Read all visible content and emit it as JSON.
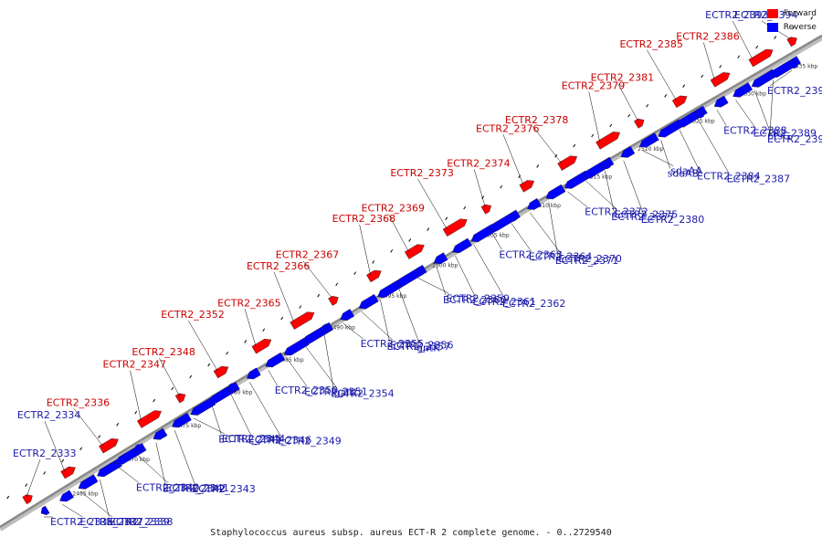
{
  "colors": {
    "forward": "#ff0000",
    "reverse": "#0000ff",
    "backbone": "#8a8a8a",
    "leader": "#000000"
  },
  "legend": [
    {
      "label": "Forward",
      "strand": "forward"
    },
    {
      "label": "Reverse",
      "strand": "reverse"
    }
  ],
  "caption": "Staphylococcus aureus subsp. aureus ECT-R 2 complete genome. - 0..2729540",
  "ticks": [
    "2465 kbp",
    "2470 kbp",
    "2475 kbp",
    "2480 kbp",
    "2485 kbp",
    "2490 kbp",
    "2495 kbp",
    "2500 kbp",
    "2505 kbp",
    "2510 kbp",
    "2515 kbp",
    "2520 kbp",
    "2525 kbp",
    "2530 kbp",
    "2535 kbp"
  ],
  "forward_genes": [
    "ECTR2_2333",
    "ECTR2_2334",
    "ECTR2_2336",
    "ECTR2_2347",
    "ECTR2_2348",
    "ECTR2_2352",
    "ECTR2_2365",
    "ECTR2_2366",
    "ECTR2_2367",
    "ECTR2_2368",
    "ECTR2_2369",
    "ECTR2_2373",
    "ECTR2_2374",
    "ECTR2_2376",
    "ECTR2_2378",
    "ECTR2_2379",
    "ECTR2_2381",
    "ECTR2_2385",
    "ECTR2_2386",
    "ECTR2_2393",
    "ECTR2_2394"
  ],
  "forward_label_colors": [
    "blue",
    "blue",
    "red",
    "red",
    "red",
    "red",
    "red",
    "red",
    "red",
    "red",
    "red",
    "red",
    "red",
    "red",
    "red",
    "red",
    "red",
    "red",
    "red",
    "blue",
    "blue"
  ],
  "reverse_genes": [
    "ECTR2_2335",
    "ECTR2_2337",
    "ECTR2_2338",
    "ECTR2_2339",
    "ECTR2_2340",
    "ECTR2_2341",
    "ECTR2_2342",
    "ECTR2_2343",
    "ECTR2_2344",
    "ECTR2_2345",
    "ECTR2_2346",
    "ECTR2_2349",
    "ECTR2_2350",
    "ECTR2_2351",
    "galU",
    "ECTR2_2354",
    "ECTR2_2355",
    "ECTR2_2356",
    "ECTR2_2357",
    "gntK",
    "ECTR2_2359",
    "ECTR2_2360",
    "ECTR2_2361",
    "ECTR2_2362",
    "ECTR2_2363",
    "ECTR2_2364",
    "ECTR2_2370",
    "ECTR2_2371",
    "ECTR2_2372",
    "ECTR2_2375",
    "ECTR2_2377",
    "ECTR2_2380",
    "sdaAA",
    "sdaAB",
    "ECTR2_2384",
    "ECTR2_2387",
    "ECTR2_2388",
    "ECTR2_2389",
    "ptsG",
    "ECTR2_2391",
    "ECTR2_2392"
  ]
}
